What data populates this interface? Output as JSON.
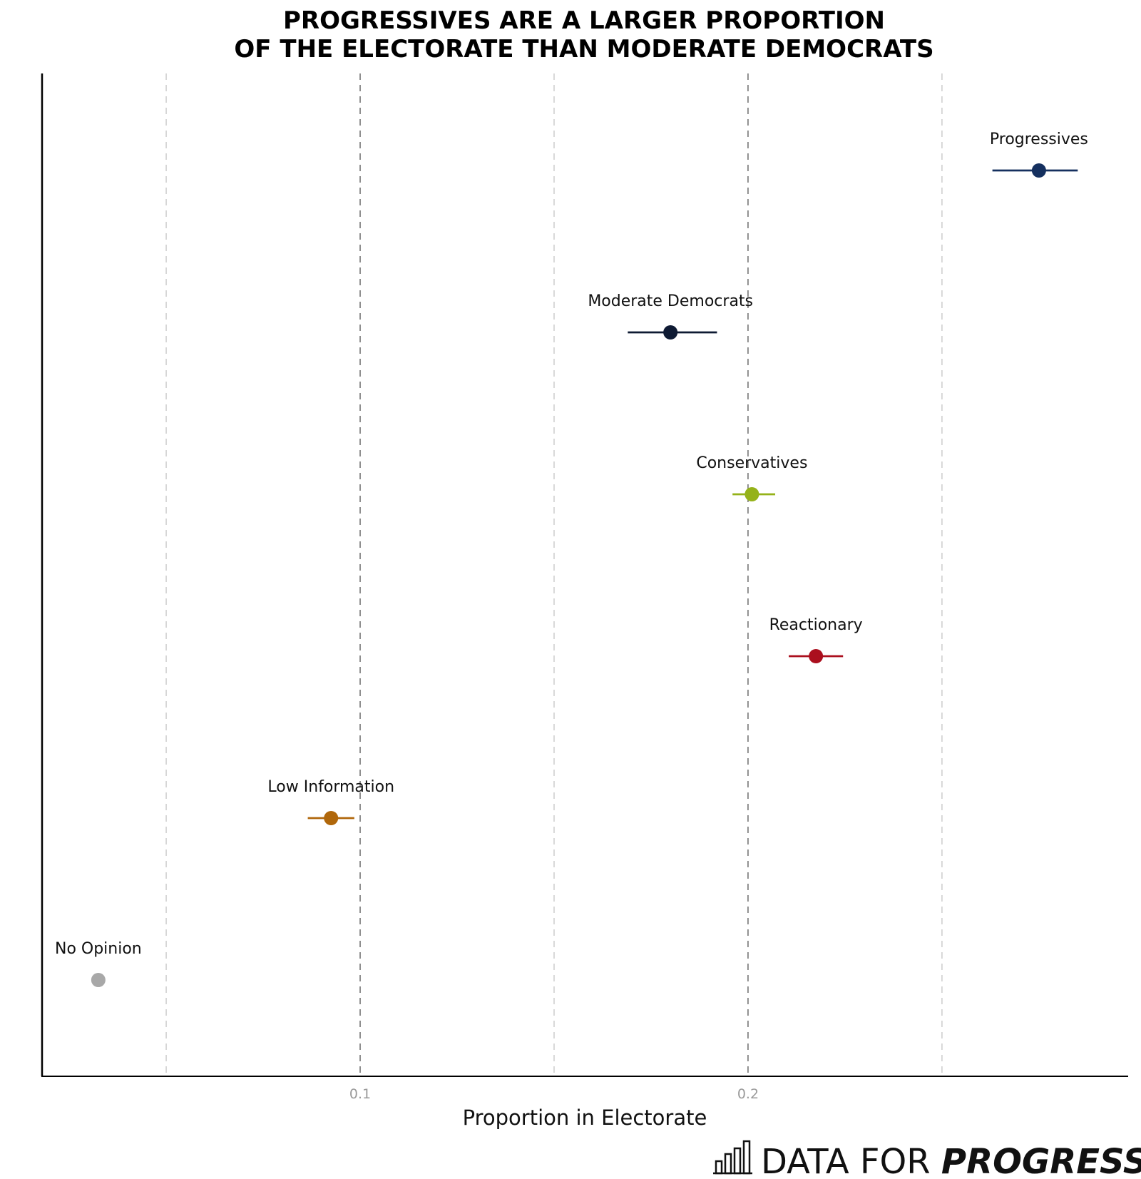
{
  "chart_data": {
    "type": "scatter",
    "title_lines": [
      "PROGRESSIVES ARE A LARGER PROPORTION",
      "OF THE ELECTORATE THAN MODERATE DEMOCRATS"
    ],
    "xlabel": "Proportion in Electorate",
    "ylabel": "",
    "xlim": [
      0.018,
      0.298
    ],
    "x_ticks": [
      {
        "value": 0.1,
        "label": "0.1"
      },
      {
        "value": 0.2,
        "label": "0.2"
      }
    ],
    "minor_gridlines": [
      0.05,
      0.15,
      0.25
    ],
    "grid": true,
    "points": [
      {
        "name": "Progressives",
        "value": 0.275,
        "low": 0.263,
        "high": 0.285,
        "color": "#15305f"
      },
      {
        "name": "Moderate Democrats",
        "value": 0.18,
        "low": 0.169,
        "high": 0.192,
        "color": "#0e1a33"
      },
      {
        "name": "Conservatives",
        "value": 0.201,
        "low": 0.196,
        "high": 0.207,
        "color": "#95b219"
      },
      {
        "name": "Reactionary",
        "value": 0.2175,
        "low": 0.2105,
        "high": 0.2245,
        "color": "#ab0f1e"
      },
      {
        "name": "Low Information",
        "value": 0.0925,
        "low": 0.0865,
        "high": 0.0985,
        "color": "#b0670b"
      },
      {
        "name": "No Opinion",
        "value": 0.0325,
        "low": 0.0325,
        "high": 0.0325,
        "color": "#a8a8a8"
      }
    ]
  },
  "brand": {
    "regular": "DATA FOR ",
    "bold": "PROGRESS",
    "icon": "bar-chart-icon"
  }
}
